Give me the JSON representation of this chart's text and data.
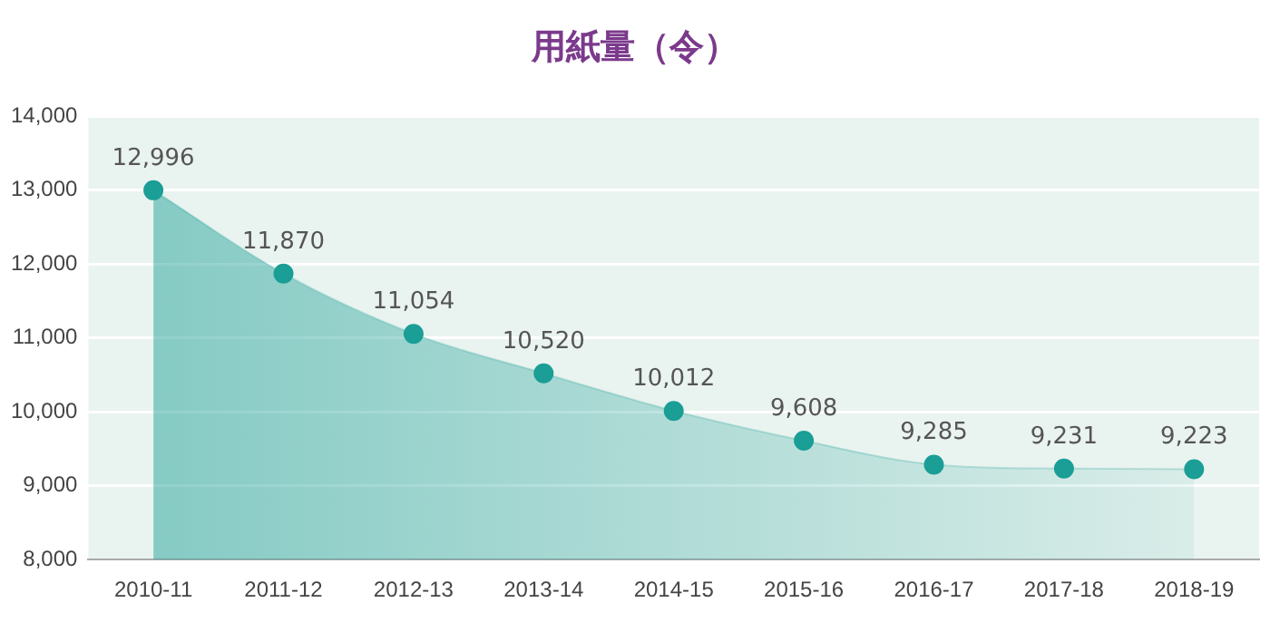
{
  "chart_data": {
    "type": "area",
    "title": "用紙量（令）",
    "categories": [
      "2010-11",
      "2011-12",
      "2012-13",
      "2013-14",
      "2014-15",
      "2015-16",
      "2016-17",
      "2017-18",
      "2018-19"
    ],
    "series": [
      {
        "color": "#1a9e96",
        "values": [
          12996,
          11870,
          11054,
          10520,
          10012,
          9608,
          9285,
          9231,
          9223
        ],
        "value_labels": [
          "12,996",
          "11,870",
          "11,054",
          "10,520",
          "10,012",
          "9,608",
          "9,285",
          "9,231",
          "9,223"
        ]
      }
    ],
    "ylim": [
      8000,
      14000
    ],
    "yticks": [
      {
        "value": 8000,
        "label": "8,000"
      },
      {
        "value": 9000,
        "label": "9,000"
      },
      {
        "value": 10000,
        "label": "10,000"
      },
      {
        "value": 11000,
        "label": "11,000"
      },
      {
        "value": 12000,
        "label": "12,000"
      },
      {
        "value": 13000,
        "label": "13,000"
      },
      {
        "value": 14000,
        "label": "14,000"
      }
    ],
    "grid": "y",
    "marker": "circle",
    "legend": false
  }
}
